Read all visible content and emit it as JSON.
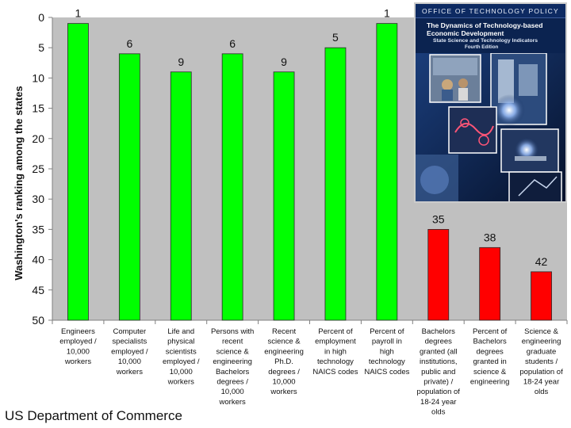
{
  "chart_data": {
    "type": "bar",
    "ylabel": "Washington's ranking among the states",
    "ylim": [
      0,
      50
    ],
    "y_inverted": true,
    "yticks": [
      0,
      5,
      10,
      15,
      20,
      25,
      30,
      35,
      40,
      45,
      50
    ],
    "grid": false,
    "categories": [
      [
        "Engineers",
        "employed /",
        "10,000",
        "workers"
      ],
      [
        "Computer",
        "specialists",
        "employed /",
        "10,000",
        "workers"
      ],
      [
        "Life and",
        "physical",
        "scientists",
        "employed /",
        "10,000",
        "workers"
      ],
      [
        "Persons with",
        "recent",
        "science &",
        "engineering",
        "Bachelors",
        "degrees /",
        "10,000",
        "workers"
      ],
      [
        "Recent",
        "science &",
        "engineering",
        "Ph.D.",
        "degrees /",
        "10,000",
        "workers"
      ],
      [
        "Percent of",
        "employment",
        "in high",
        "technology",
        "NAICS codes"
      ],
      [
        "Percent of",
        "payroll in",
        "high",
        "technology",
        "NAICS codes"
      ],
      [
        "Bachelors",
        "degrees",
        "granted (all",
        "institutions,",
        "public and",
        "private) /",
        "population of",
        "18-24 year",
        "olds"
      ],
      [
        "Percent of",
        "Bachelors",
        "degrees",
        "granted in",
        "science &",
        "engineering"
      ],
      [
        "Science &",
        "engineering",
        "graduate",
        "students /",
        "population of",
        "18-24 year",
        "olds"
      ]
    ],
    "values": [
      1,
      6,
      9,
      6,
      9,
      5,
      1,
      35,
      38,
      42
    ],
    "data_labels": [
      "1",
      "6",
      "9",
      "6",
      "9",
      "5",
      "1",
      "35",
      "38",
      "42"
    ],
    "bar_colors": [
      "#00ff00",
      "#00ff00",
      "#00ff00",
      "#00ff00",
      "#00ff00",
      "#00ff00",
      "#00ff00",
      "#ff0000",
      "#ff0000",
      "#ff0000"
    ],
    "plot_background": "#c0c0c0"
  },
  "footer": {
    "source": "US Department of Commerce"
  },
  "cover": {
    "header": "OFFICE OF TECHNOLOGY POLICY",
    "title_line1": "The Dynamics of Technology-based",
    "title_line2": "Economic Development",
    "subtitle": "State Science and Technology Indicators",
    "edition": "Fourth Edition"
  }
}
